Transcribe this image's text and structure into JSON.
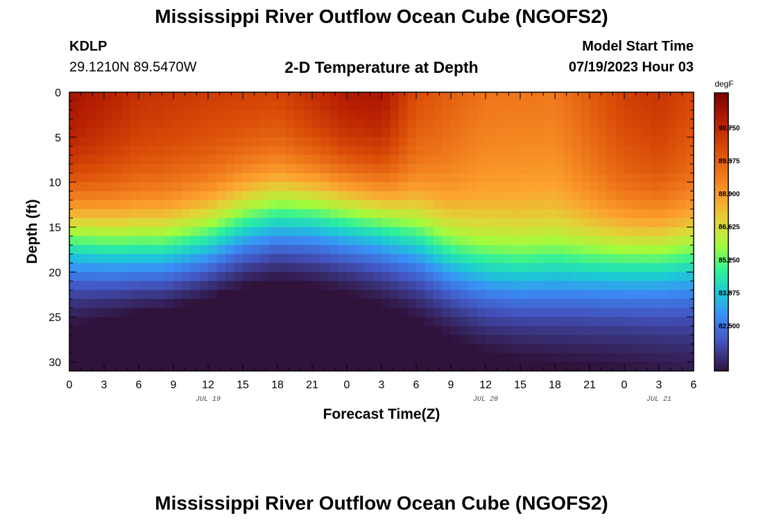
{
  "header": {
    "title": "Mississippi River Outflow Ocean Cube (NGOFS2)",
    "station_id": "KDLP",
    "station_coords": "29.1210N  89.5470W",
    "subtitle": "2-D Temperature at Depth",
    "model_start_label": "Model Start Time",
    "model_start_value": "07/19/2023 Hour 03"
  },
  "footer": {
    "title": "Mississippi River Outflow Ocean Cube (NGOFS2)"
  },
  "chart_data": {
    "type": "heatmap",
    "title": "2-D Temperature at Depth",
    "xlabel": "Forecast Time(Z)",
    "ylabel": "Depth (ft)",
    "x_tick_labels": [
      "0",
      "3",
      "6",
      "9",
      "12",
      "15",
      "18",
      "21",
      "0",
      "3",
      "6",
      "9",
      "12",
      "15",
      "18",
      "21",
      "0",
      "3",
      "6"
    ],
    "x_hours": [
      0,
      3,
      6,
      9,
      12,
      15,
      18,
      21,
      24,
      27,
      30,
      33,
      36,
      39,
      42,
      45,
      48,
      51,
      54
    ],
    "xlim_hours": [
      0,
      54
    ],
    "date_labels": [
      {
        "label": "JUL 19",
        "hour": 12
      },
      {
        "label": "JUL 20",
        "hour": 36
      },
      {
        "label": "JUL 21",
        "hour": 51
      }
    ],
    "y_ticks": [
      0,
      5,
      10,
      15,
      20,
      25,
      30
    ],
    "ylim": [
      0,
      31
    ],
    "y_inverted": true,
    "colorbar": {
      "units": "degF",
      "ticks": [
        90.75,
        89.375,
        88.0,
        86.625,
        85.25,
        83.875,
        82.5
      ],
      "tick_labels": [
        "90.750",
        "89.375",
        "88.000",
        "86.625",
        "85.250",
        "83.875",
        "82.500"
      ],
      "range": [
        80.6,
        92.2
      ]
    },
    "series": {
      "surface_temp_degF": {
        "hours": [
          0,
          6,
          12,
          18,
          24,
          27,
          30,
          36,
          42,
          48,
          51,
          54
        ],
        "values": [
          91.5,
          90.6,
          90.3,
          90.2,
          91.3,
          91.4,
          89.9,
          88.9,
          88.8,
          90.2,
          90.5,
          90.0
        ]
      },
      "bottom_temp_degF": {
        "hours": [
          0,
          6,
          12,
          18,
          24,
          30,
          36,
          42,
          48,
          54
        ],
        "values": [
          81.8,
          81.2,
          80.9,
          81.0,
          81.3,
          81.7,
          82.0,
          82.2,
          82.3,
          82.5
        ]
      },
      "thermocline_depth_ft": {
        "hours": [
          0,
          4,
          8,
          12,
          15,
          18,
          21,
          24,
          27,
          30,
          33,
          36,
          39,
          42,
          45,
          48,
          51,
          54
        ],
        "values": [
          15.8,
          16.8,
          17.2,
          16.3,
          14.6,
          13.6,
          13.4,
          13.7,
          14.2,
          15.8,
          18.0,
          19.4,
          19.7,
          19.4,
          19.0,
          18.6,
          18.3,
          18.0
        ]
      }
    }
  }
}
